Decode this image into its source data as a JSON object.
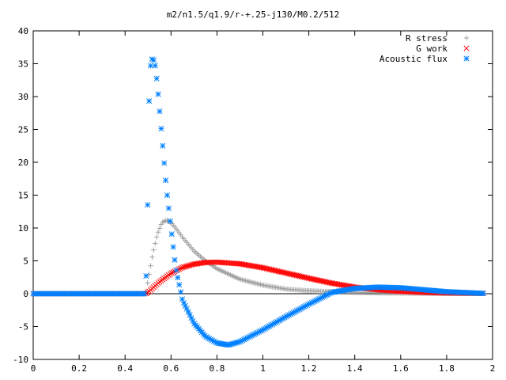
{
  "chart_data": {
    "type": "scatter",
    "title": "m2/n1.5/q1.9/r-+.25-j130/M0.2/512",
    "xlabel": "",
    "ylabel": "",
    "xlim": [
      0,
      2
    ],
    "ylim": [
      -10,
      40
    ],
    "x_ticks": [
      "0",
      "0.2",
      "0.4",
      "0.6",
      "0.8",
      "1",
      "1.2",
      "1.4",
      "1.6",
      "1.8",
      "2"
    ],
    "y_ticks": [
      "-10",
      "-5",
      "0",
      "5",
      "10",
      "15",
      "20",
      "25",
      "30",
      "35",
      "40"
    ],
    "legend_position": "top-right",
    "grid": false,
    "x_sampling": {
      "start": 0.0,
      "end": 1.96,
      "points": 300
    },
    "series": [
      {
        "name": "R stress",
        "marker": "plus",
        "color": "#a0a0a0",
        "x": [
          0,
          0.49,
          0.5,
          0.52,
          0.54,
          0.56,
          0.58,
          0.6,
          0.62,
          0.65,
          0.7,
          0.75,
          0.8,
          0.9,
          1.0,
          1.1,
          1.2,
          1.3,
          1.4,
          1.5,
          1.6,
          1.7,
          1.8,
          1.96
        ],
        "y": [
          0,
          0,
          2,
          6,
          9,
          10.8,
          11.2,
          10.8,
          10,
          8.6,
          6.5,
          5,
          3.8,
          2.2,
          1.3,
          0.7,
          0.45,
          0.3,
          0.2,
          0.12,
          0.08,
          0.05,
          0.03,
          0.02
        ]
      },
      {
        "name": "G work",
        "marker": "cross",
        "color": "#ff0000",
        "x": [
          0,
          0.49,
          0.5,
          0.55,
          0.6,
          0.65,
          0.7,
          0.75,
          0.8,
          0.9,
          1.0,
          1.1,
          1.2,
          1.3,
          1.4,
          1.5,
          1.6,
          1.7,
          1.8,
          1.96
        ],
        "y": [
          0,
          0,
          0.2,
          1.8,
          3.1,
          4.0,
          4.5,
          4.75,
          4.8,
          4.55,
          3.95,
          3.15,
          2.35,
          1.6,
          1.0,
          0.6,
          0.35,
          0.2,
          0.12,
          0.05
        ]
      },
      {
        "name": "Acoustic flux",
        "marker": "star",
        "color": "#0080ff",
        "x": [
          0,
          0.49,
          0.5,
          0.505,
          0.51,
          0.52,
          0.53,
          0.54,
          0.55,
          0.56,
          0.57,
          0.58,
          0.6,
          0.62,
          0.65,
          0.7,
          0.75,
          0.8,
          0.85,
          0.9,
          1.0,
          1.1,
          1.2,
          1.3,
          1.4,
          1.5,
          1.6,
          1.7,
          1.8,
          1.96
        ],
        "y": [
          0,
          0,
          16.5,
          30,
          34.5,
          36,
          35,
          32,
          28,
          24,
          20,
          16,
          10,
          4,
          -1,
          -4.5,
          -6.5,
          -7.5,
          -7.8,
          -7.3,
          -5.5,
          -3.5,
          -1.6,
          0.2,
          0.8,
          1.0,
          0.9,
          0.6,
          0.3,
          0.05
        ]
      }
    ]
  }
}
